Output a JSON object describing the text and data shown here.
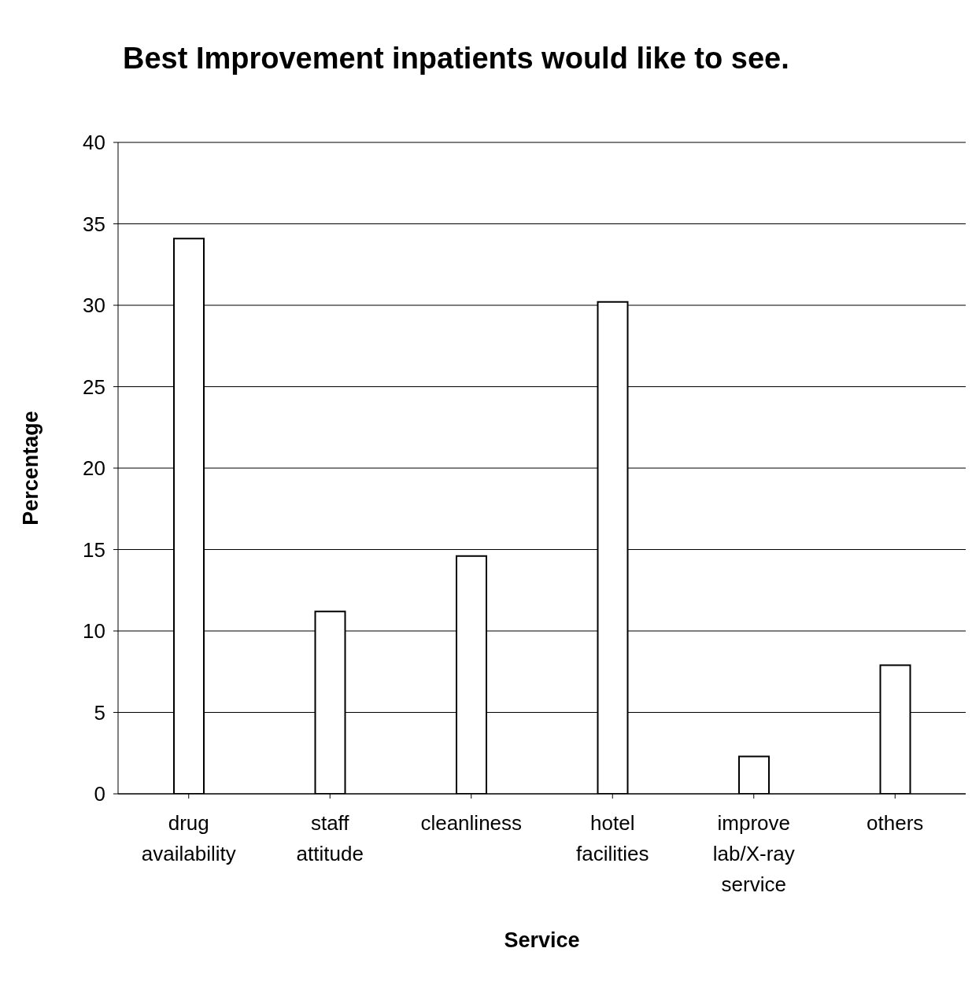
{
  "chart_data": {
    "type": "bar",
    "title": "Best Improvement inpatients would like to see.",
    "xlabel": "Service",
    "ylabel": "Percentage",
    "categories": [
      "drug availability",
      "staff attitude",
      "cleanliness",
      "hotel facilities",
      "improve lab/X-ray service",
      "others"
    ],
    "values": [
      34.1,
      11.2,
      14.6,
      30.2,
      2.3,
      7.9
    ],
    "color": "#ffffff",
    "ylim": [
      0,
      40
    ],
    "yticks": [
      0,
      5,
      10,
      15,
      20,
      25,
      30,
      35,
      40
    ],
    "grid": "y"
  }
}
